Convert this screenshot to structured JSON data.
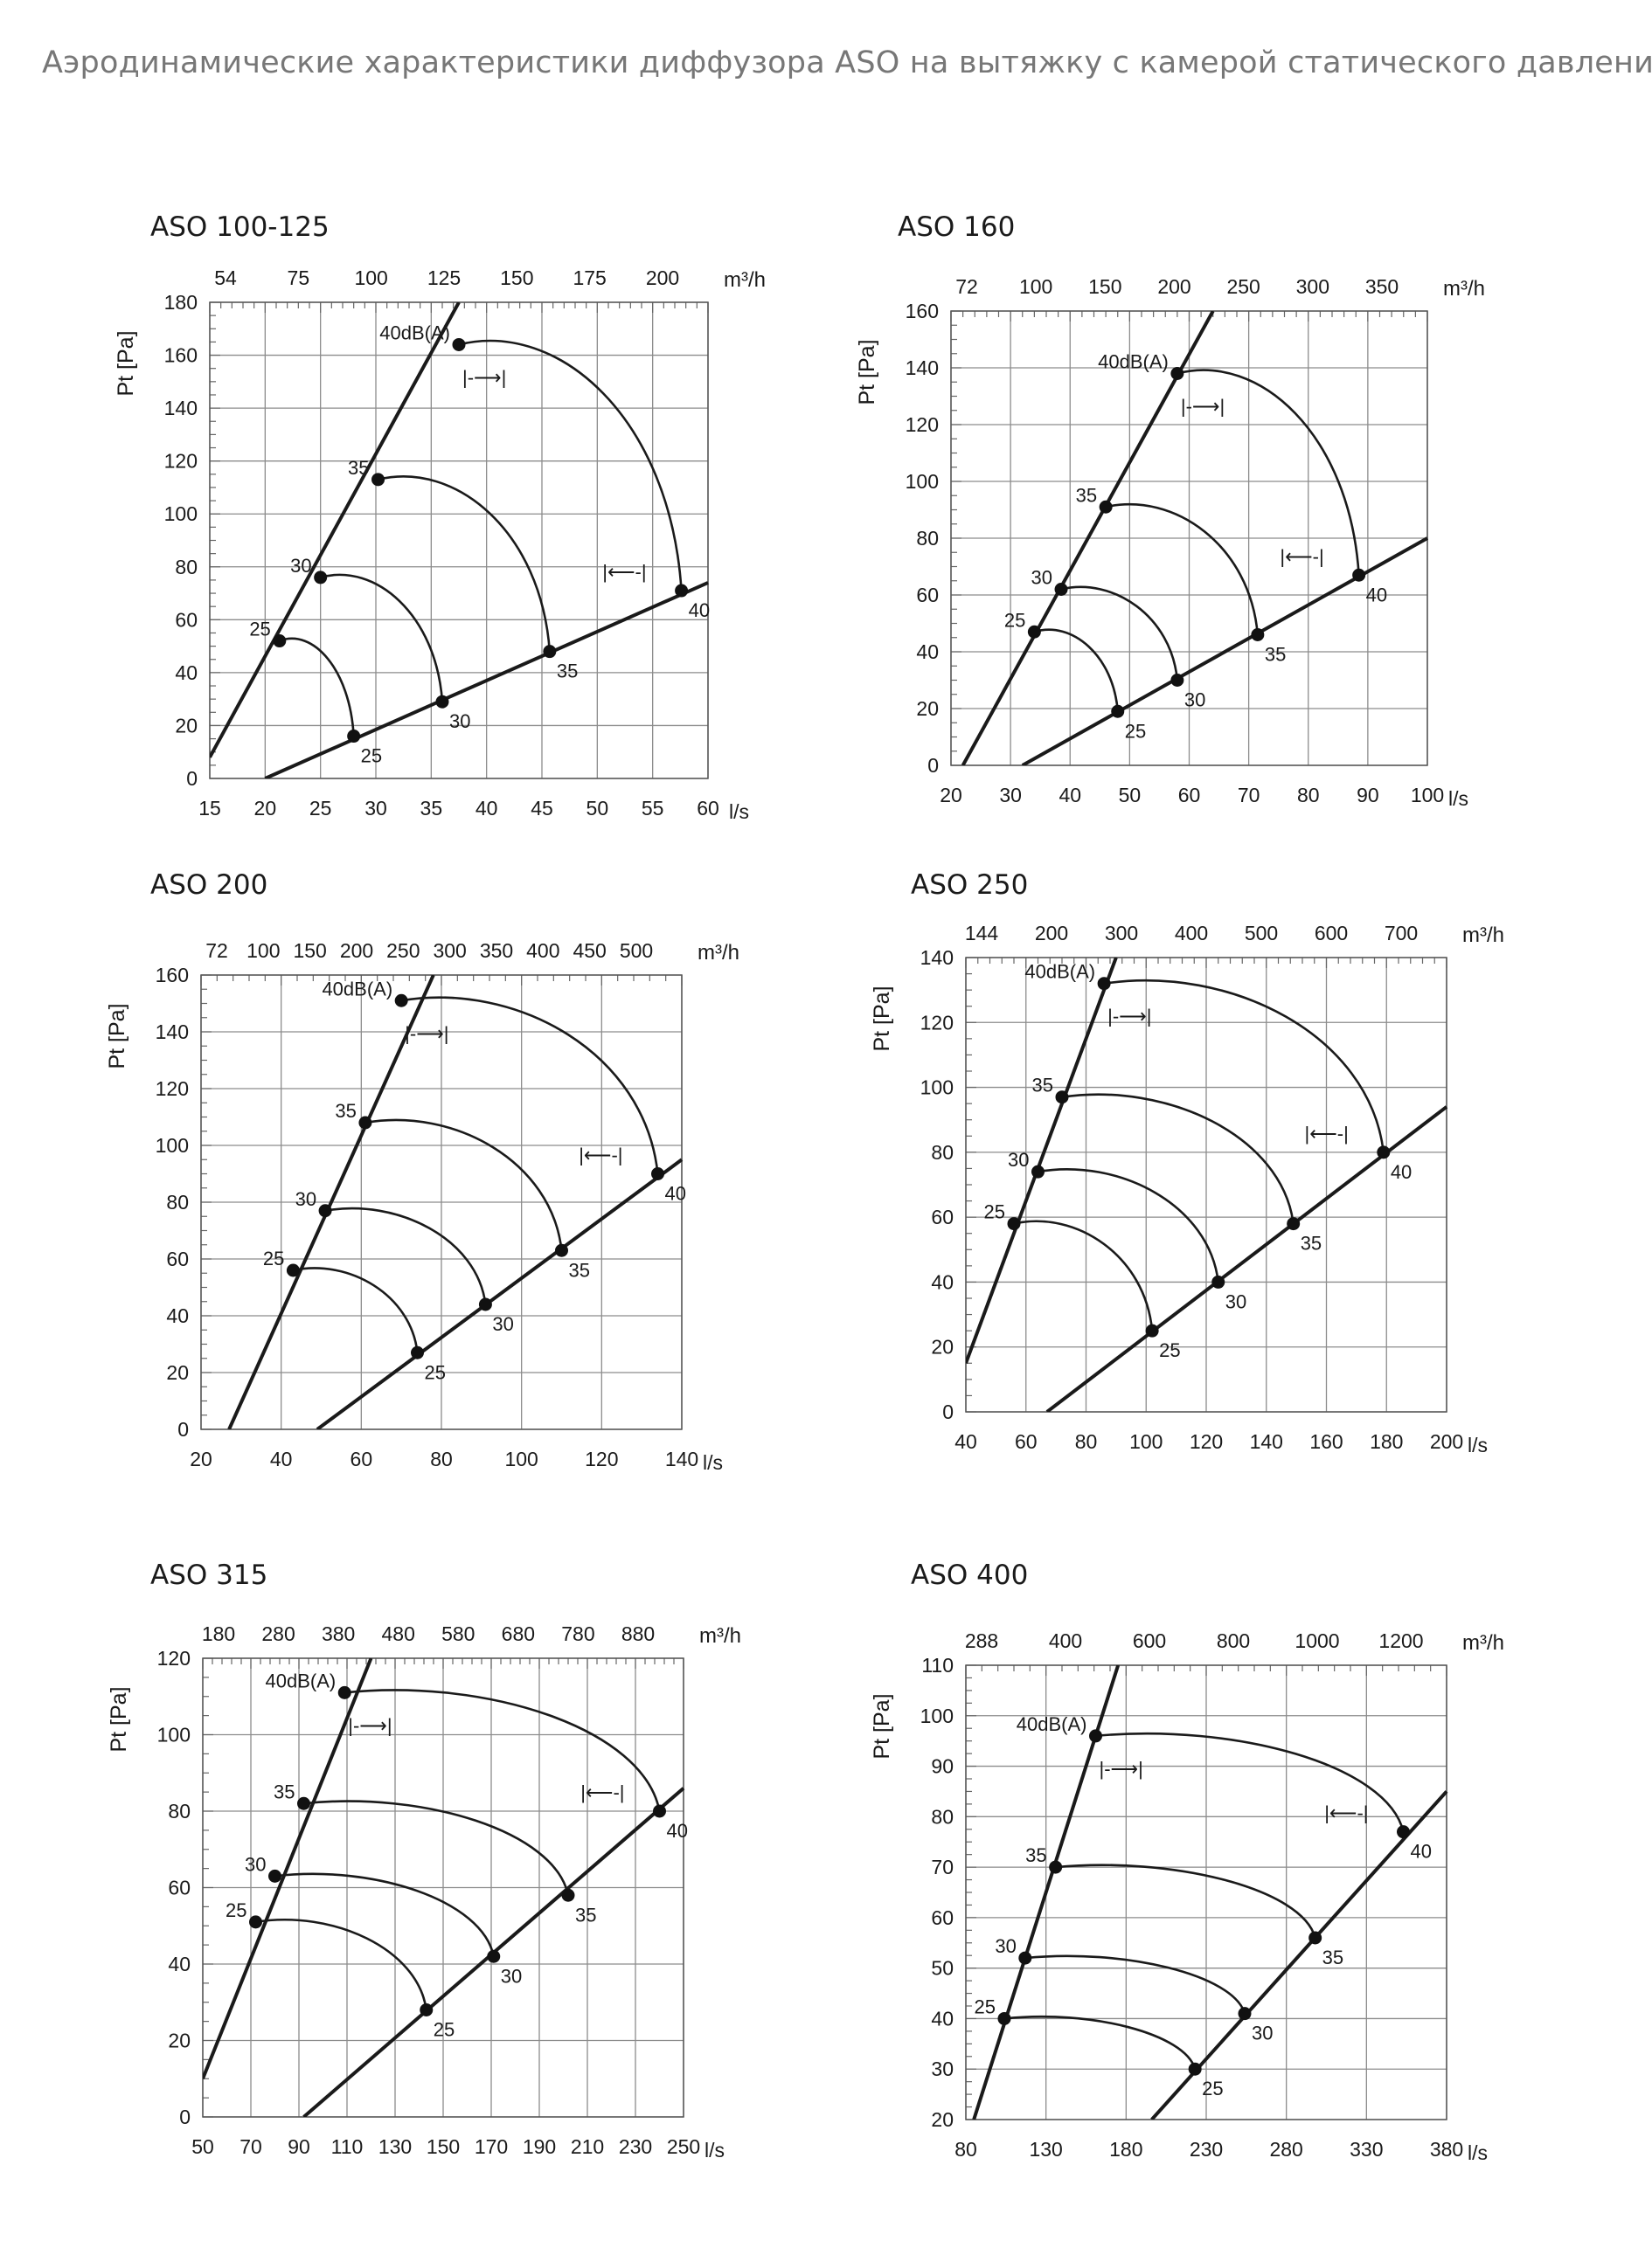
{
  "page": {
    "title": "Аэродинамические характеристики диффузора ASO на вытяжку с камерой статического давления"
  },
  "chart_data": [
    {
      "type": "line",
      "title": "ASO 100-125",
      "ylabel": "P_t [Pa]",
      "xlabel": "l/s",
      "top_unit": "m³/h",
      "xlim": [
        15,
        60
      ],
      "ylim": [
        0,
        180
      ],
      "xticks": [
        15,
        20,
        25,
        30,
        35,
        40,
        45,
        50,
        55,
        60
      ],
      "yticks": [
        0,
        20,
        40,
        60,
        80,
        100,
        120,
        140,
        160,
        180
      ],
      "top_ticks": [
        54,
        75,
        100,
        125,
        150,
        175,
        200
      ],
      "grid": true,
      "lines": [
        [
          [
            15,
            8
          ],
          [
            37.5,
            180
          ]
        ],
        [
          [
            20,
            0
          ],
          [
            60,
            74
          ]
        ]
      ],
      "series": [
        {
          "name": "25",
          "label": "25",
          "start": [
            21.3,
            52
          ],
          "end": [
            28,
            16
          ]
        },
        {
          "name": "30",
          "label": "30",
          "start": [
            25,
            76
          ],
          "end": [
            36,
            29
          ]
        },
        {
          "name": "35",
          "label": "35",
          "start": [
            30.2,
            113
          ],
          "end": [
            45.7,
            48
          ]
        },
        {
          "name": "40",
          "label": "40dB(A)",
          "end_label": "40",
          "start": [
            37.5,
            164
          ],
          "end": [
            57.6,
            71
          ]
        }
      ],
      "marker_upper": "|-⟶|",
      "marker_lower": "|⟵-|"
    },
    {
      "type": "line",
      "title": "ASO 160",
      "ylabel": "P_t [Pa]",
      "xlabel": "l/s",
      "top_unit": "m³/h",
      "xlim": [
        20,
        100
      ],
      "ylim": [
        0,
        160
      ],
      "xticks": [
        20,
        30,
        40,
        50,
        60,
        70,
        80,
        90,
        100
      ],
      "yticks": [
        0,
        20,
        40,
        60,
        80,
        100,
        120,
        140,
        160
      ],
      "top_ticks": [
        72,
        100,
        150,
        200,
        250,
        300,
        350
      ],
      "grid": true,
      "lines": [
        [
          [
            22,
            0
          ],
          [
            64,
            160
          ]
        ],
        [
          [
            32,
            0
          ],
          [
            100,
            80
          ]
        ]
      ],
      "series": [
        {
          "name": "25",
          "label": "25",
          "start": [
            34,
            47
          ],
          "end": [
            48,
            19
          ]
        },
        {
          "name": "30",
          "label": "30",
          "start": [
            38.5,
            62
          ],
          "end": [
            58,
            30
          ]
        },
        {
          "name": "35",
          "label": "35",
          "start": [
            46,
            91
          ],
          "end": [
            71.5,
            46
          ]
        },
        {
          "name": "40",
          "label": "40dB(A)",
          "end_label": "40",
          "start": [
            58,
            138
          ],
          "end": [
            88.5,
            67
          ]
        }
      ],
      "marker_upper": "|-⟶|",
      "marker_lower": "|⟵-|"
    },
    {
      "type": "line",
      "title": "ASO 200",
      "ylabel": "P_t [Pa]",
      "xlabel": "l/s",
      "top_unit": "m³/h",
      "xlim": [
        20,
        140
      ],
      "ylim": [
        0,
        160
      ],
      "xticks": [
        20,
        40,
        60,
        80,
        100,
        120,
        140
      ],
      "yticks": [
        0,
        20,
        40,
        60,
        80,
        100,
        120,
        140,
        160
      ],
      "top_ticks": [
        72,
        100,
        150,
        200,
        250,
        300,
        350,
        400,
        450,
        500
      ],
      "grid": true,
      "lines": [
        [
          [
            27,
            0
          ],
          [
            78,
            160
          ]
        ],
        [
          [
            49,
            0
          ],
          [
            140,
            95
          ]
        ]
      ],
      "series": [
        {
          "name": "25",
          "label": "25",
          "start": [
            43,
            56
          ],
          "end": [
            74,
            27
          ]
        },
        {
          "name": "30",
          "label": "30",
          "start": [
            51,
            77
          ],
          "end": [
            91,
            44
          ]
        },
        {
          "name": "35",
          "label": "35",
          "start": [
            61,
            108
          ],
          "end": [
            110,
            63
          ]
        },
        {
          "name": "40",
          "label": "40dB(A)",
          "end_label": "40",
          "start": [
            70,
            151
          ],
          "end": [
            134,
            90
          ]
        }
      ],
      "marker_upper": "|-⟶|",
      "marker_lower": "|⟵-|"
    },
    {
      "type": "line",
      "title": "ASO 250",
      "ylabel": "P_t [Pa]",
      "xlabel": "l/s",
      "top_unit": "m³/h",
      "xlim": [
        40,
        200
      ],
      "ylim": [
        0,
        140
      ],
      "xticks": [
        40,
        60,
        80,
        100,
        120,
        140,
        160,
        180,
        200
      ],
      "yticks": [
        0,
        20,
        40,
        60,
        80,
        100,
        120,
        140
      ],
      "top_ticks": [
        144,
        200,
        300,
        400,
        500,
        600,
        700
      ],
      "grid": true,
      "lines": [
        [
          [
            40,
            15
          ],
          [
            90,
            140
          ]
        ],
        [
          [
            67,
            0
          ],
          [
            200,
            94
          ]
        ]
      ],
      "series": [
        {
          "name": "25",
          "label": "25",
          "start": [
            56,
            58
          ],
          "end": [
            102,
            25
          ]
        },
        {
          "name": "30",
          "label": "30",
          "start": [
            64,
            74
          ],
          "end": [
            124,
            40
          ]
        },
        {
          "name": "35",
          "label": "35",
          "start": [
            72,
            97
          ],
          "end": [
            149,
            58
          ]
        },
        {
          "name": "40",
          "label": "40dB(A)",
          "end_label": "40",
          "start": [
            86,
            132
          ],
          "end": [
            179,
            80
          ]
        }
      ],
      "marker_upper": "|-⟶|",
      "marker_lower": "|⟵-|"
    },
    {
      "type": "line",
      "title": "ASO 315",
      "ylabel": "P_t [Pa]",
      "xlabel": "l/s",
      "top_unit": "m³/h",
      "xlim": [
        50,
        250
      ],
      "ylim": [
        0,
        120
      ],
      "xticks": [
        50,
        70,
        90,
        110,
        130,
        150,
        170,
        190,
        210,
        230,
        250
      ],
      "yticks": [
        0,
        20,
        40,
        60,
        80,
        100,
        120
      ],
      "top_ticks": [
        180,
        280,
        380,
        480,
        580,
        680,
        780,
        880
      ],
      "grid": true,
      "lines": [
        [
          [
            50,
            10
          ],
          [
            120,
            120
          ]
        ],
        [
          [
            92,
            0
          ],
          [
            250,
            86
          ]
        ]
      ],
      "series": [
        {
          "name": "25",
          "label": "25",
          "start": [
            72,
            51
          ],
          "end": [
            143,
            28
          ]
        },
        {
          "name": "30",
          "label": "30",
          "start": [
            80,
            63
          ],
          "end": [
            171,
            42
          ]
        },
        {
          "name": "35",
          "label": "35",
          "start": [
            92,
            82
          ],
          "end": [
            202,
            58
          ]
        },
        {
          "name": "40",
          "label": "40dB(A)",
          "end_label": "40",
          "start": [
            109,
            111
          ],
          "end": [
            240,
            80
          ]
        }
      ],
      "marker_upper": "|-⟶|",
      "marker_lower": "|⟵-|"
    },
    {
      "type": "line",
      "title": "ASO 400",
      "ylabel": "P_t [Pa]",
      "xlabel": "l/s",
      "top_unit": "m³/h",
      "xlim": [
        80,
        380
      ],
      "ylim": [
        20,
        110
      ],
      "xticks": [
        80,
        130,
        180,
        230,
        280,
        330,
        380
      ],
      "yticks": [
        20,
        30,
        40,
        50,
        60,
        70,
        80,
        90,
        100,
        110
      ],
      "top_ticks": [
        288,
        400,
        600,
        800,
        1000,
        1200
      ],
      "grid": true,
      "lines": [
        [
          [
            85,
            20
          ],
          [
            175,
            110
          ]
        ],
        [
          [
            196,
            20
          ],
          [
            380,
            85
          ]
        ]
      ],
      "series": [
        {
          "name": "25",
          "label": "25",
          "start": [
            104,
            40
          ],
          "end": [
            223,
            30
          ]
        },
        {
          "name": "30",
          "label": "30",
          "start": [
            117,
            52
          ],
          "end": [
            254,
            41
          ]
        },
        {
          "name": "35",
          "label": "35",
          "start": [
            136,
            70
          ],
          "end": [
            298,
            56
          ]
        },
        {
          "name": "40",
          "label": "40dB(A)",
          "end_label": "40",
          "start": [
            161,
            96
          ],
          "end": [
            353,
            77
          ]
        }
      ],
      "marker_upper": "|-⟶|",
      "marker_lower": "|⟵-|"
    }
  ]
}
